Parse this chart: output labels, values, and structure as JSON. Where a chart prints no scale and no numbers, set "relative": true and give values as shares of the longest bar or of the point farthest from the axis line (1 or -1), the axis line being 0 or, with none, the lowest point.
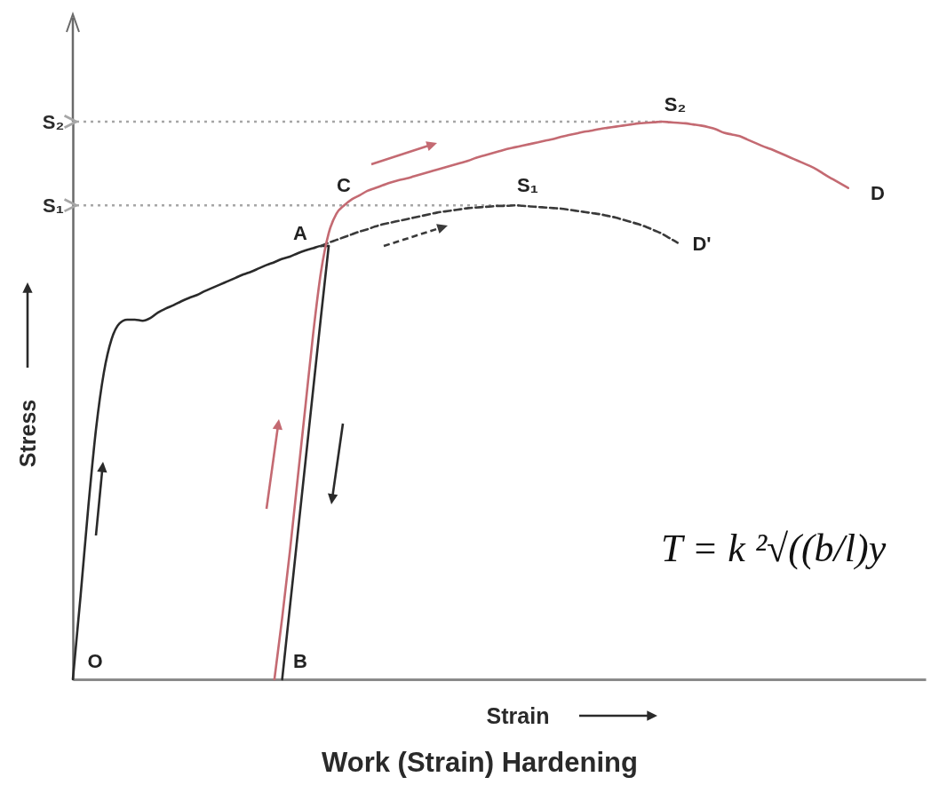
{
  "chart_data": {
    "type": "line",
    "title": "Work (Strain) Hardening",
    "xlabel": "Strain",
    "ylabel": "Stress",
    "relative": true,
    "categories": [
      null,
      null,
      null,
      null,
      null,
      null,
      null,
      null,
      null,
      null,
      null,
      null,
      null,
      null,
      null,
      null,
      null,
      null,
      null,
      null,
      null,
      null,
      null,
      null,
      null,
      null,
      null,
      null,
      null,
      null,
      null,
      null,
      null,
      null,
      null,
      null,
      null,
      null,
      null,
      null,
      null,
      null,
      null,
      null,
      null,
      null,
      null,
      null,
      null,
      null,
      null,
      null,
      null,
      null,
      null,
      null,
      null,
      null,
      null,
      null,
      null,
      null,
      null,
      null,
      null,
      null,
      null,
      null,
      null,
      null,
      null,
      null,
      null,
      null,
      null,
      null,
      null,
      null,
      null,
      null,
      null,
      null,
      null,
      null,
      null,
      null,
      null,
      null,
      null,
      null,
      null,
      null,
      null,
      null,
      null,
      null,
      null,
      null,
      null,
      null,
      null,
      null,
      null,
      null,
      null,
      null,
      null,
      null,
      null,
      null,
      null
    ],
    "series": [
      {
        "color": "#2a2a2a",
        "line_style": "solid",
        "values": [
          0,
          0.15,
          0.31,
          0.45,
          0.55,
          0.61,
          0.638,
          0.645,
          0.645,
          0.643,
          0.648,
          0.658,
          0.665,
          0.671,
          0.678,
          0.684,
          0.689,
          0.696,
          0.702,
          0.708,
          0.714,
          0.72,
          0.726,
          0.731,
          0.737,
          0.743,
          0.748,
          0.754,
          0.758,
          0.764,
          0.769,
          0.773,
          0.777,
          0.777,
          null,
          null,
          null,
          null,
          null,
          null,
          null,
          null,
          null,
          null,
          null,
          null,
          null,
          null,
          null,
          null,
          null,
          null,
          null,
          null,
          null,
          null,
          null,
          null,
          null,
          null,
          null,
          null,
          null,
          null,
          null,
          null,
          null,
          null,
          null,
          null,
          null,
          null,
          null,
          null,
          null,
          null,
          null,
          null,
          null,
          null,
          null,
          null,
          null,
          null,
          null,
          null,
          null,
          null,
          null,
          null,
          null,
          null,
          null,
          null,
          null,
          null,
          null,
          null,
          null,
          null,
          null,
          null,
          null,
          null,
          null,
          null,
          null,
          null,
          null,
          null,
          null
        ]
      },
      {
        "color": "#2a2a2a",
        "line_style": "solid",
        "values": [
          null,
          null,
          null,
          null,
          null,
          null,
          null,
          null,
          null,
          null,
          null,
          null,
          null,
          null,
          null,
          null,
          null,
          null,
          null,
          null,
          null,
          null,
          null,
          null,
          null,
          null,
          null,
          0,
          0.13,
          0.26,
          0.39,
          0.52,
          0.65,
          0.777,
          null,
          null,
          null,
          null,
          null,
          null,
          null,
          null,
          null,
          null,
          null,
          null,
          null,
          null,
          null,
          null,
          null,
          null,
          null,
          null,
          null,
          null,
          null,
          null,
          null,
          null,
          null,
          null,
          null,
          null,
          null,
          null,
          null,
          null,
          null,
          null,
          null,
          null,
          null,
          null,
          null,
          null,
          null,
          null,
          null,
          null,
          null,
          null,
          null,
          null,
          null,
          null,
          null,
          null,
          null,
          null,
          null,
          null,
          null,
          null,
          null,
          null,
          null,
          null,
          null,
          null,
          null,
          null,
          null,
          null,
          null,
          null,
          null,
          null,
          null,
          null,
          null
        ]
      },
      {
        "color": "#3a3a3a",
        "line_style": "dashed",
        "values": [
          null,
          null,
          null,
          null,
          null,
          null,
          null,
          null,
          null,
          null,
          null,
          null,
          null,
          null,
          null,
          null,
          null,
          null,
          null,
          null,
          null,
          null,
          null,
          null,
          null,
          null,
          null,
          null,
          null,
          null,
          null,
          null,
          0.777,
          0.783,
          0.788,
          0.793,
          0.798,
          0.803,
          0.807,
          0.812,
          0.816,
          0.819,
          0.822,
          0.825,
          0.828,
          0.831,
          0.834,
          0.837,
          0.839,
          0.841,
          0.843,
          0.845,
          0.846,
          0.847,
          0.848,
          0.849,
          0.849,
          0.85,
          0.849,
          0.848,
          0.847,
          0.846,
          0.845,
          0.844,
          0.842,
          0.84,
          0.838,
          0.836,
          0.834,
          0.831,
          0.828,
          0.824,
          0.82,
          0.816,
          0.811,
          0.805,
          0.799,
          0.791,
          0.783,
          null,
          null,
          null,
          null,
          null,
          null,
          null,
          null,
          null,
          null,
          null,
          null,
          null,
          null,
          null,
          null,
          null,
          null,
          null,
          null,
          null,
          null,
          null,
          null,
          null,
          null,
          null,
          null,
          null,
          null,
          null,
          null
        ]
      },
      {
        "color": "#c46a72",
        "line_style": "solid",
        "values": [
          null,
          null,
          null,
          null,
          null,
          null,
          null,
          null,
          null,
          null,
          null,
          null,
          null,
          null,
          null,
          null,
          null,
          null,
          null,
          null,
          null,
          null,
          null,
          null,
          null,
          null,
          0,
          0.11,
          0.23,
          0.36,
          0.49,
          0.62,
          0.73,
          0.8,
          0.835,
          0.85,
          0.861,
          0.868,
          0.876,
          0.881,
          0.886,
          0.891,
          0.895,
          0.898,
          0.902,
          0.906,
          0.91,
          0.914,
          0.918,
          0.922,
          0.926,
          0.93,
          0.935,
          0.939,
          0.943,
          0.947,
          0.951,
          0.954,
          0.957,
          0.96,
          0.963,
          0.966,
          0.969,
          0.973,
          0.976,
          0.979,
          0.982,
          0.984,
          0.987,
          0.989,
          0.991,
          0.993,
          0.995,
          0.997,
          0.998,
          0.999,
          1,
          0.999,
          0.998,
          0.997,
          0.995,
          0.993,
          0.99,
          0.986,
          0.98,
          0.977,
          0.974,
          0.968,
          0.962,
          0.956,
          0.951,
          0.945,
          0.939,
          0.933,
          0.927,
          0.921,
          0.914,
          0.905,
          0.897,
          0.889,
          0.881,
          null,
          null,
          null,
          null,
          null,
          null,
          null,
          null,
          null,
          null
        ]
      }
    ],
    "ref_lines": [
      {
        "axis": "y",
        "value": 1,
        "label": "S₂",
        "color": "#a6a6a6",
        "line_style": "dotted"
      },
      {
        "axis": "y",
        "value": 0.85,
        "label": "S₁",
        "color": "#a6a6a6",
        "line_style": "dotted"
      }
    ],
    "annotations": [
      "O",
      "A",
      "B",
      "C",
      "D",
      "D'",
      "S₁",
      "S₂",
      "T = k ²√((b/l)y"
    ]
  }
}
